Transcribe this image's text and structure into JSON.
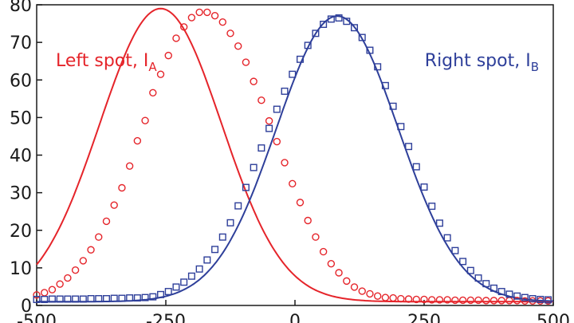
{
  "chart_data": {
    "type": "scatter",
    "title": "",
    "xlabel": "",
    "ylabel": "",
    "xlim": [
      -500,
      500
    ],
    "ylim": [
      0,
      80
    ],
    "grid": false,
    "y_ticks": [
      0,
      10,
      20,
      30,
      40,
      50,
      60,
      70,
      80
    ],
    "y_tick_labels": [
      "0",
      "10",
      "20",
      "30",
      "40",
      "50",
      "60",
      "70",
      "80"
    ],
    "x_ticks": [
      -500,
      -250,
      0,
      250,
      500
    ],
    "x_tick_labels": [
      "-500",
      "-250",
      "0",
      "250",
      "500"
    ],
    "legend_placement": "inline",
    "series": [
      {
        "name": "Left spot, I",
        "name_subscript": "A",
        "color": "#e5242a",
        "marker": "circle",
        "fit": {
          "amplitude": 78,
          "center": -260,
          "sigma": 118,
          "baseline": 1
        },
        "x": [
          -500,
          -485,
          -470,
          -455,
          -440,
          -425,
          -410,
          -395,
          -380,
          -365,
          -350,
          -335,
          -320,
          -305,
          -290,
          -275,
          -260,
          -245,
          -230,
          -215,
          -200,
          -185,
          -170,
          -155,
          -140,
          -125,
          -110,
          -95,
          -80,
          -65,
          -50,
          -35,
          -20,
          -5,
          10,
          25,
          40,
          55,
          70,
          85,
          100,
          115,
          130,
          145,
          160,
          175,
          190,
          205,
          220,
          235,
          250,
          265,
          280,
          295,
          310,
          325,
          340,
          355,
          370,
          385,
          400,
          415,
          430,
          445,
          460,
          475,
          490
        ],
        "y": [
          2.8,
          3.4,
          4.2,
          5.7,
          7.3,
          9.4,
          11.9,
          14.8,
          18.2,
          22.4,
          26.7,
          31.3,
          37.1,
          43.8,
          49.2,
          56.6,
          61.5,
          66.5,
          71.1,
          74.1,
          76.6,
          78,
          78,
          77.1,
          75.4,
          72.4,
          69,
          64.7,
          59.6,
          54.6,
          49.1,
          43.6,
          38,
          32.4,
          27.4,
          22.6,
          18.2,
          14.3,
          11.1,
          8.7,
          6.5,
          4.9,
          3.8,
          3.1,
          2.5,
          2.1,
          2,
          1.8,
          1.7,
          1.6,
          1.6,
          1.5,
          1.5,
          1.5,
          1.4,
          1.4,
          1.4,
          1.4,
          1.3,
          1.3,
          1.3,
          1.3,
          1.3,
          1.2,
          1.2,
          1.2,
          1.2
        ]
      },
      {
        "name": "Right spot, I",
        "name_subscript": "B",
        "color": "#2e3f9a",
        "marker": "square",
        "fit": {
          "amplitude": 76,
          "center": 82,
          "sigma": 118,
          "baseline": 1
        },
        "x": [
          -500,
          -485,
          -470,
          -455,
          -440,
          -425,
          -410,
          -395,
          -380,
          -365,
          -350,
          -335,
          -320,
          -305,
          -290,
          -275,
          -260,
          -245,
          -230,
          -215,
          -200,
          -185,
          -170,
          -155,
          -140,
          -125,
          -110,
          -95,
          -80,
          -65,
          -50,
          -35,
          -20,
          -5,
          10,
          25,
          40,
          55,
          70,
          85,
          100,
          115,
          130,
          145,
          160,
          175,
          190,
          205,
          220,
          235,
          250,
          265,
          280,
          295,
          310,
          325,
          340,
          355,
          370,
          385,
          400,
          415,
          430,
          445,
          460,
          475,
          490
        ],
        "y": [
          1.6,
          1.6,
          1.7,
          1.7,
          1.7,
          1.7,
          1.7,
          1.8,
          1.8,
          1.8,
          1.9,
          1.9,
          2,
          2,
          2.1,
          2.3,
          2.9,
          3.7,
          4.9,
          6.2,
          7.8,
          9.7,
          12.1,
          14.9,
          18.2,
          22,
          26.5,
          31.4,
          36.7,
          41.9,
          47.1,
          52.2,
          57,
          61.5,
          65.5,
          69.2,
          72.4,
          74.8,
          76.2,
          76.5,
          75.6,
          73.9,
          71.3,
          67.9,
          63.5,
          58.5,
          53,
          47.6,
          42.3,
          36.9,
          31.5,
          26.4,
          21.9,
          18,
          14.6,
          11.7,
          9.3,
          7.3,
          5.8,
          4.6,
          3.7,
          3,
          2.5,
          2.1,
          1.8,
          1.6,
          1.5
        ]
      }
    ]
  }
}
